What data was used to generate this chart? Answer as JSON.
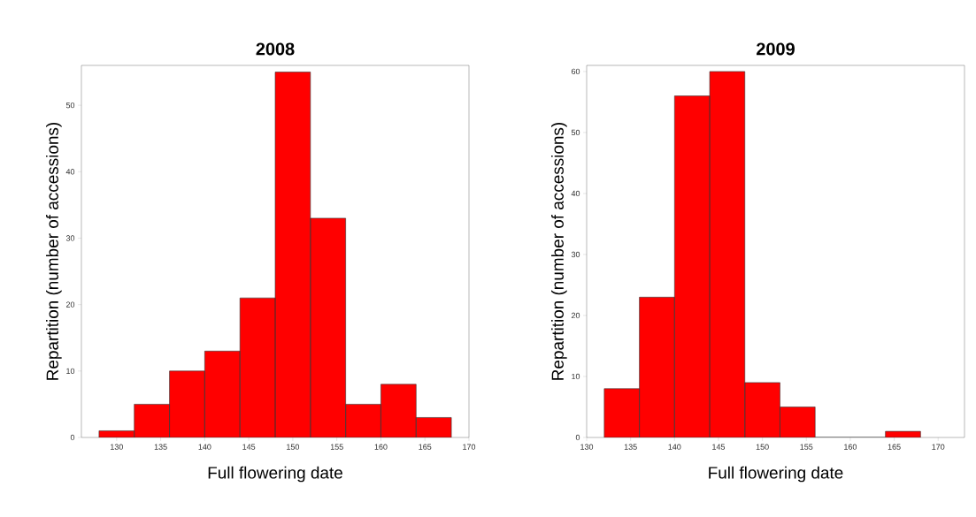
{
  "chart_data": [
    {
      "type": "histogram",
      "title": "2008",
      "xlabel": "Full flowering date",
      "ylabel": "Repartition (number of accessions)",
      "color": "#ff0000",
      "bins": [
        128,
        132,
        136,
        140,
        144,
        148,
        152,
        156,
        160,
        164,
        168
      ],
      "values": [
        1,
        5,
        10,
        13,
        21,
        55,
        33,
        5,
        8,
        3
      ],
      "xlim": [
        126,
        170
      ],
      "ylim": [
        0,
        56
      ],
      "xticks": [
        130,
        135,
        140,
        145,
        150,
        155,
        160,
        165,
        170
      ],
      "yticks": [
        0,
        10,
        20,
        30,
        40,
        50
      ],
      "grid": false
    },
    {
      "type": "histogram",
      "title": "2009",
      "xlabel": "Full flowering date",
      "ylabel": "Repartition (number of accessions)",
      "color": "#ff0000",
      "bins": [
        132,
        136,
        140,
        144,
        148,
        152,
        156,
        160,
        164,
        168
      ],
      "values": [
        8,
        23,
        56,
        60,
        9,
        5,
        0,
        0,
        1
      ],
      "xlim": [
        130,
        173
      ],
      "ylim": [
        0,
        61
      ],
      "xticks": [
        130,
        135,
        140,
        145,
        150,
        155,
        160,
        165,
        170
      ],
      "yticks": [
        0,
        10,
        20,
        30,
        40,
        50,
        60
      ],
      "grid": false
    }
  ]
}
